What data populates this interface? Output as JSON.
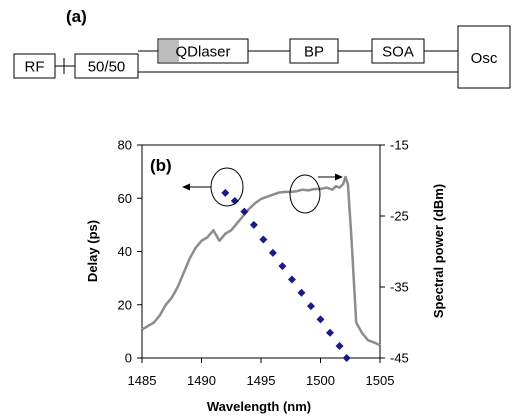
{
  "diagram": {
    "panel_label": "(a)",
    "blocks": {
      "rf": "RF",
      "coupler": "50/50",
      "qd_laser": "QDlaser",
      "bp": "BP",
      "soa": "SOA",
      "osc": "Osc"
    }
  },
  "chart_data": {
    "type": "line",
    "panel_label": "(b)",
    "xlabel": "Wavelength (nm)",
    "ylabel_left": "Delay (ps)",
    "ylabel_right": "Spectral power (dBm)",
    "xlim": [
      1485,
      1505
    ],
    "ylim_left": [
      0,
      80
    ],
    "ylim_right": [
      -45,
      -15
    ],
    "x_ticks": [
      "1485",
      "1490",
      "1495",
      "1500",
      "1505"
    ],
    "y_ticks_left": [
      "0",
      "20",
      "40",
      "60",
      "80"
    ],
    "y_ticks_right": [
      "-15",
      "-25",
      "-35",
      "-45"
    ],
    "grid": false,
    "series": [
      {
        "axis": "left",
        "style": "markers",
        "color": "#1a1a8c",
        "x": [
          1492.0,
          1492.8,
          1493.6,
          1494.4,
          1495.2,
          1496.0,
          1496.8,
          1497.6,
          1498.4,
          1499.2,
          1500.0,
          1500.8,
          1501.6,
          1502.2
        ],
        "y": [
          62,
          59,
          55,
          50,
          44.5,
          39.5,
          34.5,
          29.5,
          24.5,
          19.5,
          14.5,
          9.5,
          4.5,
          0
        ]
      },
      {
        "axis": "right",
        "style": "line",
        "color": "#8c8c8c",
        "x": [
          1485.0,
          1485.5,
          1486.0,
          1486.5,
          1487.0,
          1487.5,
          1488.0,
          1488.5,
          1489.0,
          1489.5,
          1490.0,
          1490.5,
          1491.0,
          1491.5,
          1492.0,
          1492.5,
          1493.0,
          1493.5,
          1494.0,
          1494.5,
          1495.0,
          1495.5,
          1496.0,
          1496.5,
          1497.0,
          1497.5,
          1498.0,
          1498.5,
          1499.0,
          1499.5,
          1500.0,
          1500.5,
          1501.0,
          1501.3,
          1501.6,
          1501.9,
          1502.1,
          1502.3,
          1502.6,
          1503.0,
          1503.5,
          1504.0,
          1504.5,
          1505.0
        ],
        "y": [
          -41.0,
          -40.5,
          -40.0,
          -39.0,
          -37.5,
          -36.5,
          -35.0,
          -33.0,
          -31.0,
          -29.5,
          -28.5,
          -28.0,
          -27.0,
          -28.5,
          -27.5,
          -27.0,
          -26.0,
          -25.0,
          -24.0,
          -23.2,
          -22.6,
          -22.3,
          -22.0,
          -21.7,
          -21.6,
          -21.6,
          -21.5,
          -21.3,
          -21.4,
          -21.2,
          -21.2,
          -21.0,
          -21.3,
          -20.8,
          -21.0,
          -20.5,
          -19.5,
          -20.5,
          -28.0,
          -40.0,
          -41.5,
          -42.5,
          -42.8,
          -43.2
        ]
      }
    ]
  }
}
